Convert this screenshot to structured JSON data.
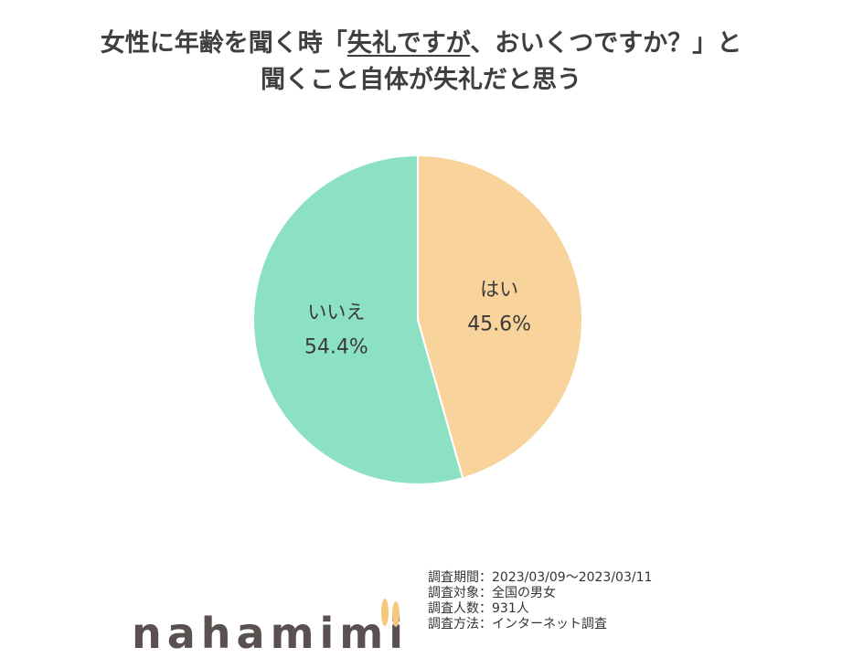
{
  "title": {
    "line1_before": "女性に年齢を聞く時「",
    "line1_underlined": "失礼ですが",
    "line1_after": "、おいくつですか？」と",
    "line2": "聞くこと自体が失礼だと思う"
  },
  "chart_data": {
    "type": "pie",
    "title": "女性に年齢を聞く時「失礼ですが、おいくつですか？」と聞くこと自体が失礼だと思う",
    "slices": [
      {
        "label": "はい",
        "value": 45.6,
        "display": "45.6%",
        "color": "#f8d39c"
      },
      {
        "label": "いいえ",
        "value": 54.4,
        "display": "54.4%",
        "color": "#8ce0c4"
      }
    ],
    "start": "12 o'clock",
    "direction": "clockwise",
    "legend": "none"
  },
  "survey": {
    "period": "調査期間：2023/03/09～2023/03/11",
    "target": "調査対象：全国の男女",
    "count": "調査人数：931人",
    "method": "調査方法：インターネット調査"
  },
  "brand": {
    "text": "nahamimi",
    "ear_color": "#f5c87a"
  }
}
